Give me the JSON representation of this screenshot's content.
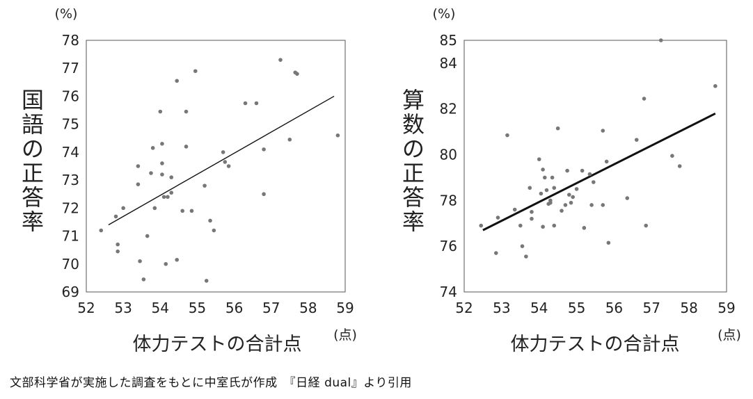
{
  "caption": "文部科学省が実施した調査をもとに中室氏が作成　『日経 dual』より引用",
  "chart_data": [
    {
      "type": "scatter",
      "title": "",
      "xlabel": "体力テストの合計点",
      "ylabel": "国語の正答率",
      "x_unit": "(点)",
      "y_unit": "(%)",
      "xlim": [
        52,
        59
      ],
      "ylim": [
        69,
        78
      ],
      "xticks": [
        52,
        53,
        54,
        55,
        56,
        57,
        58,
        59
      ],
      "yticks": [
        69,
        70,
        71,
        72,
        73,
        74,
        75,
        76,
        77,
        78
      ],
      "grid": false,
      "trendline": {
        "x": [
          52.6,
          58.7
        ],
        "y": [
          71.4,
          76.0
        ],
        "bold": false
      },
      "points": [
        {
          "x": 52.4,
          "y": 71.2
        },
        {
          "x": 52.8,
          "y": 71.7
        },
        {
          "x": 52.85,
          "y": 70.7
        },
        {
          "x": 52.85,
          "y": 70.45
        },
        {
          "x": 53.0,
          "y": 72.0
        },
        {
          "x": 53.4,
          "y": 73.5
        },
        {
          "x": 53.4,
          "y": 72.85
        },
        {
          "x": 53.45,
          "y": 70.1
        },
        {
          "x": 53.55,
          "y": 69.45
        },
        {
          "x": 53.65,
          "y": 71.0
        },
        {
          "x": 53.75,
          "y": 73.25
        },
        {
          "x": 53.8,
          "y": 74.15
        },
        {
          "x": 53.85,
          "y": 72.0
        },
        {
          "x": 54.0,
          "y": 75.45
        },
        {
          "x": 54.05,
          "y": 74.3
        },
        {
          "x": 54.05,
          "y": 73.6
        },
        {
          "x": 54.05,
          "y": 73.2
        },
        {
          "x": 54.1,
          "y": 72.4
        },
        {
          "x": 54.15,
          "y": 70.0
        },
        {
          "x": 54.2,
          "y": 72.4
        },
        {
          "x": 54.3,
          "y": 72.55
        },
        {
          "x": 54.3,
          "y": 73.1
        },
        {
          "x": 54.45,
          "y": 76.55
        },
        {
          "x": 54.45,
          "y": 70.15
        },
        {
          "x": 54.6,
          "y": 71.9
        },
        {
          "x": 54.7,
          "y": 75.45
        },
        {
          "x": 54.7,
          "y": 74.2
        },
        {
          "x": 54.85,
          "y": 71.9
        },
        {
          "x": 54.95,
          "y": 76.9
        },
        {
          "x": 55.2,
          "y": 72.8
        },
        {
          "x": 55.25,
          "y": 69.4
        },
        {
          "x": 55.35,
          "y": 71.55
        },
        {
          "x": 55.45,
          "y": 71.2
        },
        {
          "x": 55.7,
          "y": 74.0
        },
        {
          "x": 55.75,
          "y": 73.65
        },
        {
          "x": 55.85,
          "y": 73.5
        },
        {
          "x": 56.3,
          "y": 75.75
        },
        {
          "x": 56.6,
          "y": 75.75
        },
        {
          "x": 56.8,
          "y": 74.1
        },
        {
          "x": 56.8,
          "y": 72.5
        },
        {
          "x": 57.25,
          "y": 77.3
        },
        {
          "x": 57.5,
          "y": 74.45
        },
        {
          "x": 57.65,
          "y": 76.85
        },
        {
          "x": 57.7,
          "y": 76.8
        },
        {
          "x": 58.8,
          "y": 74.6
        }
      ]
    },
    {
      "type": "scatter",
      "title": "",
      "xlabel": "体力テストの合計点",
      "ylabel": "算数の正答率",
      "x_unit": "(点)",
      "y_unit": "(%)",
      "xlim": [
        52,
        59
      ],
      "ylim": [
        74,
        85
      ],
      "xticks": [
        52,
        53,
        54,
        55,
        56,
        57,
        58,
        59
      ],
      "yticks": [
        74,
        76,
        78,
        80,
        82,
        84,
        85
      ],
      "grid": false,
      "trendline": {
        "x": [
          52.5,
          58.7
        ],
        "y": [
          76.7,
          81.8
        ],
        "bold": true
      },
      "points": [
        {
          "x": 52.45,
          "y": 76.9
        },
        {
          "x": 52.85,
          "y": 75.7
        },
        {
          "x": 52.9,
          "y": 77.25
        },
        {
          "x": 53.15,
          "y": 80.85
        },
        {
          "x": 53.35,
          "y": 77.6
        },
        {
          "x": 53.5,
          "y": 76.9
        },
        {
          "x": 53.55,
          "y": 76.0
        },
        {
          "x": 53.65,
          "y": 75.55
        },
        {
          "x": 53.75,
          "y": 78.55
        },
        {
          "x": 53.8,
          "y": 77.5
        },
        {
          "x": 53.8,
          "y": 77.2
        },
        {
          "x": 54.0,
          "y": 79.8
        },
        {
          "x": 54.05,
          "y": 78.3
        },
        {
          "x": 54.1,
          "y": 76.85
        },
        {
          "x": 54.1,
          "y": 79.35
        },
        {
          "x": 54.15,
          "y": 79.0
        },
        {
          "x": 54.2,
          "y": 78.45
        },
        {
          "x": 54.25,
          "y": 77.85
        },
        {
          "x": 54.3,
          "y": 77.9
        },
        {
          "x": 54.3,
          "y": 78.0
        },
        {
          "x": 54.35,
          "y": 79.0
        },
        {
          "x": 54.4,
          "y": 78.55
        },
        {
          "x": 54.4,
          "y": 76.9
        },
        {
          "x": 54.5,
          "y": 81.15
        },
        {
          "x": 54.6,
          "y": 77.55
        },
        {
          "x": 54.7,
          "y": 77.8
        },
        {
          "x": 54.75,
          "y": 79.3
        },
        {
          "x": 54.8,
          "y": 78.25
        },
        {
          "x": 54.85,
          "y": 77.9
        },
        {
          "x": 54.9,
          "y": 78.15
        },
        {
          "x": 55.0,
          "y": 78.5
        },
        {
          "x": 55.15,
          "y": 79.3
        },
        {
          "x": 55.2,
          "y": 76.8
        },
        {
          "x": 55.35,
          "y": 79.15
        },
        {
          "x": 55.4,
          "y": 77.8
        },
        {
          "x": 55.45,
          "y": 78.8
        },
        {
          "x": 55.7,
          "y": 81.05
        },
        {
          "x": 55.7,
          "y": 77.8
        },
        {
          "x": 55.8,
          "y": 79.7
        },
        {
          "x": 55.85,
          "y": 76.15
        },
        {
          "x": 56.35,
          "y": 78.1
        },
        {
          "x": 56.6,
          "y": 80.65
        },
        {
          "x": 56.8,
          "y": 82.45
        },
        {
          "x": 56.85,
          "y": 76.9
        },
        {
          "x": 57.25,
          "y": 85.0
        },
        {
          "x": 57.55,
          "y": 79.95
        },
        {
          "x": 57.75,
          "y": 79.5
        },
        {
          "x": 58.7,
          "y": 83.0
        }
      ]
    }
  ]
}
